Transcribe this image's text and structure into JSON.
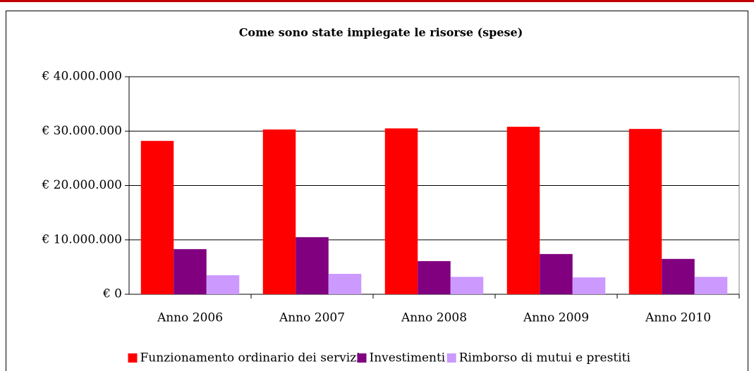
{
  "chart_data": {
    "type": "bar",
    "title": "Come sono state impiegate le risorse (spese)",
    "categories": [
      "Anno 2006",
      "Anno 2007",
      "Anno 2008",
      "Anno 2009",
      "Anno 2010"
    ],
    "series": [
      {
        "name": "Funzionamento ordinario dei servizi",
        "color": "#ff0000",
        "values": [
          28200000,
          30300000,
          30500000,
          30800000,
          30400000
        ]
      },
      {
        "name": "Investimenti",
        "color": "#800080",
        "values": [
          8300000,
          10500000,
          6100000,
          7400000,
          6500000
        ]
      },
      {
        "name": "Rimborso di mutui e prestiti",
        "color": "#cc99ff",
        "values": [
          3500000,
          3750000,
          3200000,
          3100000,
          3200000
        ]
      }
    ],
    "ylim": [
      0,
      40000000
    ],
    "yticks": [
      {
        "value": 0,
        "label": "€ 0"
      },
      {
        "value": 10000000,
        "label": "€ 10.000.000"
      },
      {
        "value": 20000000,
        "label": "€ 20.000.000"
      },
      {
        "value": 30000000,
        "label": "€ 30.000.000"
      },
      {
        "value": 40000000,
        "label": "€ 40.000.000"
      }
    ],
    "grid": true,
    "legend": "bottom"
  }
}
